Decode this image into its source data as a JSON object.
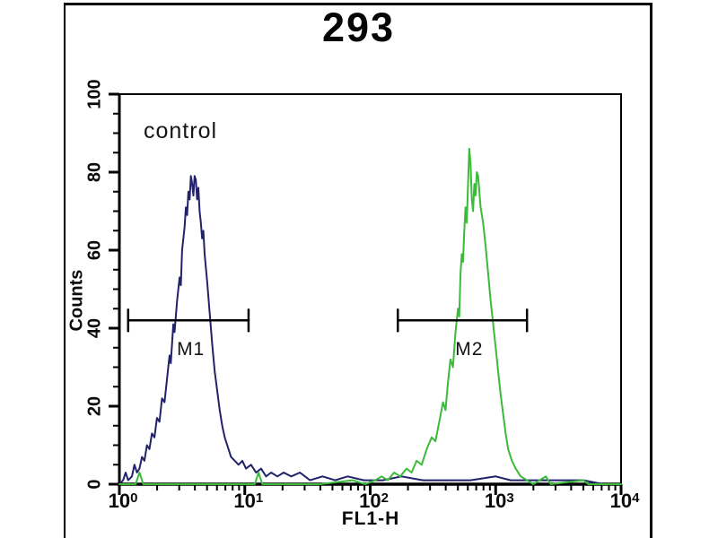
{
  "colors": {
    "background": "#ffffff",
    "frame": "#000000",
    "axis": "#000000",
    "marker": "#000000",
    "control_curve": "#22226b",
    "green_curve": "#3abb3a"
  },
  "chart_data": {
    "type": "line",
    "subtype": "flow-cytometry-histogram",
    "title": "293",
    "xlabel": "FL1-H",
    "ylabel": "Counts",
    "x_scale": "log10",
    "x_tick_base": "10",
    "x_decades": [
      0,
      1,
      2,
      3,
      4
    ],
    "xlim": [
      1,
      10000
    ],
    "ylim": [
      0,
      100
    ],
    "y_major_step": 20,
    "y_minor_step": 5,
    "grid": false,
    "legend": "none",
    "annotations": [
      {
        "text": "control",
        "log_x": 0.2,
        "y_count": 92
      }
    ],
    "markers": [
      {
        "label": "M1",
        "log_from": 0.07,
        "log_to": 1.03,
        "y_count": 42,
        "label_log_x": 0.57
      },
      {
        "label": "M2",
        "log_from": 2.22,
        "log_to": 3.25,
        "y_count": 42,
        "label_log_x": 2.79
      }
    ],
    "series": [
      {
        "name": "control",
        "color": "#22226b",
        "peak_log_x": 0.58,
        "peak_count": 79,
        "points": [
          [
            0.0,
            0
          ],
          [
            0.03,
            1
          ],
          [
            0.05,
            3
          ],
          [
            0.07,
            1
          ],
          [
            0.1,
            2
          ],
          [
            0.12,
            5
          ],
          [
            0.14,
            3
          ],
          [
            0.16,
            4
          ],
          [
            0.18,
            7
          ],
          [
            0.2,
            6
          ],
          [
            0.22,
            10
          ],
          [
            0.24,
            9
          ],
          [
            0.26,
            13
          ],
          [
            0.28,
            12
          ],
          [
            0.3,
            17
          ],
          [
            0.32,
            16
          ],
          [
            0.34,
            22
          ],
          [
            0.36,
            21
          ],
          [
            0.38,
            27
          ],
          [
            0.4,
            33
          ],
          [
            0.41,
            31
          ],
          [
            0.43,
            41
          ],
          [
            0.44,
            39
          ],
          [
            0.46,
            47
          ],
          [
            0.48,
            53
          ],
          [
            0.49,
            51
          ],
          [
            0.5,
            60
          ],
          [
            0.52,
            66
          ],
          [
            0.53,
            71
          ],
          [
            0.54,
            69
          ],
          [
            0.55,
            75
          ],
          [
            0.56,
            73
          ],
          [
            0.57,
            79
          ],
          [
            0.58,
            77
          ],
          [
            0.59,
            74
          ],
          [
            0.6,
            79
          ],
          [
            0.61,
            78
          ],
          [
            0.62,
            73
          ],
          [
            0.63,
            76
          ],
          [
            0.64,
            70
          ],
          [
            0.65,
            67
          ],
          [
            0.66,
            63
          ],
          [
            0.67,
            65
          ],
          [
            0.68,
            59
          ],
          [
            0.7,
            52
          ],
          [
            0.72,
            44
          ],
          [
            0.74,
            36
          ],
          [
            0.76,
            29
          ],
          [
            0.78,
            24
          ],
          [
            0.8,
            19
          ],
          [
            0.82,
            15
          ],
          [
            0.84,
            12
          ],
          [
            0.86,
            10
          ],
          [
            0.89,
            7
          ],
          [
            0.92,
            6
          ],
          [
            0.95,
            5
          ],
          [
            0.98,
            6
          ],
          [
            1.01,
            4
          ],
          [
            1.05,
            5
          ],
          [
            1.09,
            3
          ],
          [
            1.13,
            4
          ],
          [
            1.17,
            2
          ],
          [
            1.21,
            3
          ],
          [
            1.26,
            2
          ],
          [
            1.31,
            3
          ],
          [
            1.37,
            2
          ],
          [
            1.44,
            3
          ],
          [
            1.52,
            1
          ],
          [
            1.62,
            2
          ],
          [
            1.72,
            1
          ],
          [
            1.82,
            2
          ],
          [
            1.95,
            1
          ],
          [
            2.1,
            1
          ],
          [
            2.25,
            2
          ],
          [
            2.42,
            1
          ],
          [
            2.6,
            1
          ],
          [
            2.8,
            1
          ],
          [
            3.0,
            2
          ],
          [
            3.12,
            1
          ],
          [
            3.3,
            1
          ],
          [
            3.5,
            1
          ],
          [
            3.7,
            1
          ],
          [
            3.86,
            0
          ],
          [
            4.0,
            0
          ]
        ]
      },
      {
        "name": "green",
        "color": "#3abb3a",
        "peak_log_x": 2.79,
        "peak_count": 86,
        "points": [
          [
            0.0,
            0
          ],
          [
            0.13,
            0
          ],
          [
            0.16,
            3
          ],
          [
            0.19,
            0
          ],
          [
            0.6,
            0
          ],
          [
            1.08,
            0
          ],
          [
            1.11,
            3
          ],
          [
            1.14,
            0
          ],
          [
            1.6,
            0
          ],
          [
            1.86,
            1
          ],
          [
            1.96,
            0
          ],
          [
            2.04,
            1
          ],
          [
            2.09,
            2
          ],
          [
            2.14,
            1
          ],
          [
            2.19,
            3
          ],
          [
            2.24,
            2
          ],
          [
            2.29,
            4
          ],
          [
            2.33,
            3
          ],
          [
            2.37,
            6
          ],
          [
            2.41,
            5
          ],
          [
            2.45,
            9
          ],
          [
            2.49,
            12
          ],
          [
            2.52,
            11
          ],
          [
            2.55,
            16
          ],
          [
            2.58,
            21
          ],
          [
            2.6,
            19
          ],
          [
            2.62,
            26
          ],
          [
            2.64,
            32
          ],
          [
            2.66,
            30
          ],
          [
            2.68,
            39
          ],
          [
            2.7,
            45
          ],
          [
            2.71,
            43
          ],
          [
            2.72,
            54
          ],
          [
            2.73,
            59
          ],
          [
            2.74,
            57
          ],
          [
            2.75,
            65
          ],
          [
            2.76,
            71
          ],
          [
            2.77,
            67
          ],
          [
            2.78,
            77
          ],
          [
            2.79,
            86
          ],
          [
            2.8,
            82
          ],
          [
            2.81,
            73
          ],
          [
            2.82,
            70
          ],
          [
            2.83,
            77
          ],
          [
            2.84,
            74
          ],
          [
            2.85,
            80
          ],
          [
            2.86,
            79
          ],
          [
            2.87,
            75
          ],
          [
            2.88,
            71
          ],
          [
            2.9,
            67
          ],
          [
            2.92,
            61
          ],
          [
            2.94,
            54
          ],
          [
            2.96,
            47
          ],
          [
            2.98,
            41
          ],
          [
            3.0,
            35
          ],
          [
            3.02,
            29
          ],
          [
            3.04,
            23
          ],
          [
            3.06,
            18
          ],
          [
            3.08,
            13
          ],
          [
            3.1,
            9
          ],
          [
            3.13,
            6
          ],
          [
            3.16,
            4
          ],
          [
            3.2,
            2
          ],
          [
            3.25,
            1
          ],
          [
            3.3,
            0
          ],
          [
            3.4,
            2
          ],
          [
            3.44,
            0
          ],
          [
            3.7,
            1
          ],
          [
            3.74,
            0
          ],
          [
            4.0,
            0
          ]
        ]
      }
    ]
  }
}
